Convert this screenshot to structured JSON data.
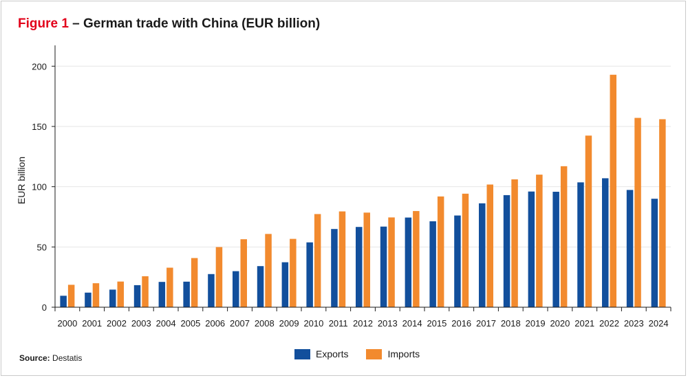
{
  "title": {
    "figure_label": "Figure 1",
    "text": " – German trade with China (EUR billion)"
  },
  "source": {
    "label": "Source:",
    "text": " Destatis"
  },
  "colors": {
    "exports": "#124f9c",
    "imports": "#f28a2e",
    "accent": "#e2001a",
    "grid": "#e6e6e6"
  },
  "chart_data": {
    "type": "bar",
    "title": "German trade with China (EUR billion)",
    "xlabel": "",
    "ylabel": "EUR billion",
    "ylim": [
      0,
      215
    ],
    "yticks": [
      0,
      50,
      100,
      150,
      200
    ],
    "grid": true,
    "legend_position": "bottom",
    "categories": [
      "2000",
      "2001",
      "2002",
      "2003",
      "2004",
      "2005",
      "2006",
      "2007",
      "2008",
      "2009",
      "2010",
      "2011",
      "2012",
      "2013",
      "2014",
      "2015",
      "2016",
      "2017",
      "2018",
      "2019",
      "2020",
      "2021",
      "2022",
      "2023",
      "2024"
    ],
    "series": [
      {
        "name": "Exports",
        "values": [
          9.5,
          12.1,
          14.6,
          18.3,
          21.0,
          21.2,
          27.5,
          29.9,
          34.1,
          37.3,
          53.8,
          64.9,
          66.6,
          66.9,
          74.4,
          71.3,
          76.1,
          86.2,
          93.0,
          96.0,
          95.8,
          103.6,
          107.0,
          97.3,
          90.0
        ]
      },
      {
        "name": "Imports",
        "values": [
          18.6,
          19.9,
          21.3,
          25.7,
          32.8,
          40.8,
          49.9,
          56.4,
          60.8,
          56.7,
          77.3,
          79.5,
          78.5,
          74.5,
          79.8,
          91.9,
          94.2,
          101.8,
          106.1,
          110.0,
          117.0,
          142.4,
          192.9,
          157.1,
          156.0
        ]
      }
    ]
  }
}
